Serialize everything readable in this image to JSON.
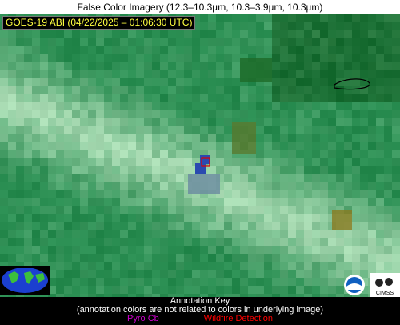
{
  "header": {
    "title": "False Color Imagery (12.3–10.3µm, 10.3–3.9µm, 10.3µm)"
  },
  "image": {
    "caption": "GOES-19 ABI (04/22/2025 – 01:06:30 UTC)"
  },
  "annotation_key": {
    "title": "Annotation Key",
    "note": "(annotation colors are not related to colors in underlying image)",
    "items": [
      {
        "label": "Pyro Cb",
        "color": "#d000d0"
      },
      {
        "label": "Wildfire Detection",
        "color": "#ff0000"
      }
    ]
  },
  "logos": {
    "right": "CIMSS"
  }
}
